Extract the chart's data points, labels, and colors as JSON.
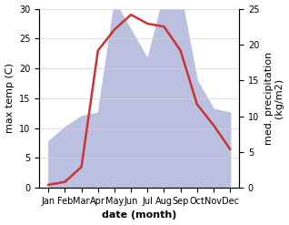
{
  "months": [
    "Jan",
    "Feb",
    "Mar",
    "Apr",
    "May",
    "Jun",
    "Jul",
    "Aug",
    "Sep",
    "Oct",
    "Nov",
    "Dec"
  ],
  "temperature": [
    0.5,
    1.0,
    3.5,
    23.0,
    26.5,
    29.0,
    27.5,
    27.0,
    23.0,
    14.0,
    10.5,
    6.5
  ],
  "precipitation": [
    6.5,
    8.5,
    10.0,
    10.5,
    26.0,
    22.0,
    18.0,
    27.0,
    27.0,
    15.0,
    11.0,
    10.5
  ],
  "temp_color": "#cc3333",
  "precip_fill_color": "#bcc0e0",
  "ylabel_left": "max temp (C)",
  "ylabel_right": "med. precipitation\n(kg/m2)",
  "xlabel": "date (month)",
  "ylim_left": [
    0,
    30
  ],
  "ylim_right": [
    0,
    25
  ],
  "yticks_left": [
    0,
    5,
    10,
    15,
    20,
    25,
    30
  ],
  "yticks_right": [
    0,
    5,
    10,
    15,
    20,
    25
  ],
  "label_fontsize": 8,
  "tick_fontsize": 7
}
